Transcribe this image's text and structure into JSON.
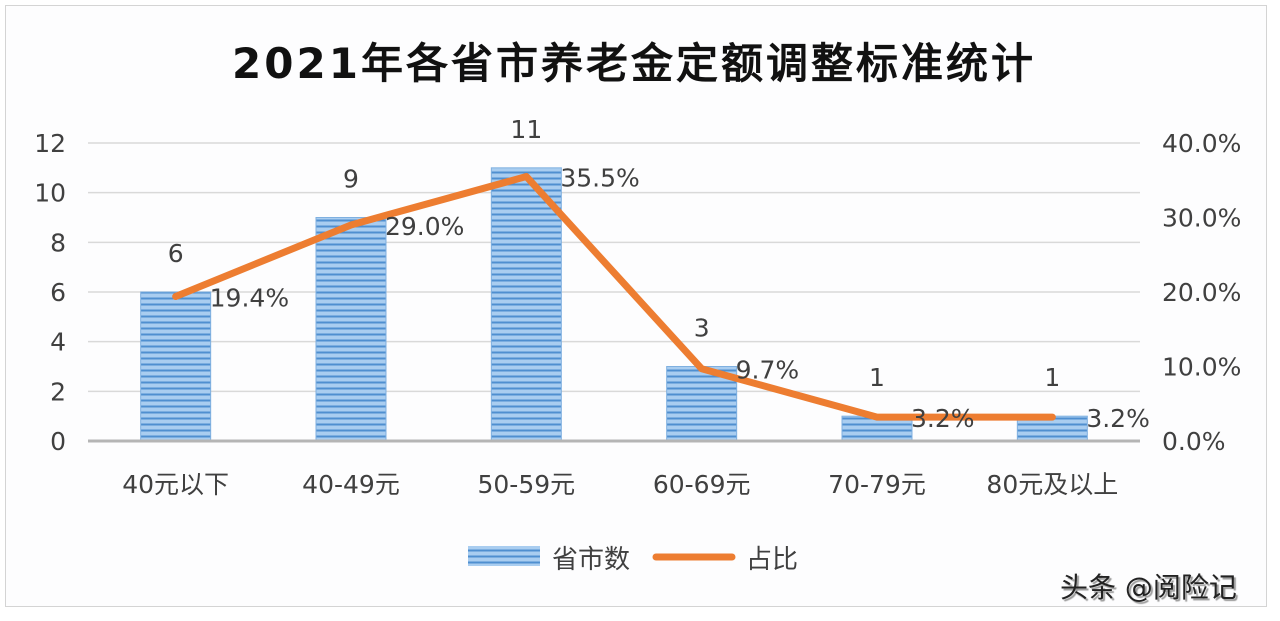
{
  "chart_data": {
    "type": "bar+line",
    "title": "2021年各省市养老金定额调整标准统计",
    "categories": [
      "40元以下",
      "40-49元",
      "50-59元",
      "60-69元",
      "70-79元",
      "80元及以上"
    ],
    "series": [
      {
        "name": "省市数",
        "type": "bar",
        "axis": "left",
        "values": [
          6,
          9,
          11,
          3,
          1,
          1
        ],
        "color": "#5b9bd5"
      },
      {
        "name": "占比",
        "type": "line",
        "axis": "right",
        "values": [
          19.4,
          29.0,
          35.5,
          9.7,
          3.2,
          3.2
        ],
        "labels": [
          "19.4%",
          "29.0%",
          "35.5%",
          "9.7%",
          "3.2%",
          "3.2%"
        ],
        "color": "#ed7d31"
      }
    ],
    "xlabel": "",
    "ylabel": "",
    "ylim": [
      0,
      12
    ],
    "y_ticks": [
      "0",
      "2",
      "4",
      "6",
      "8",
      "10",
      "12"
    ],
    "y2lim": [
      0,
      40
    ],
    "y2_ticks": [
      "0.0%",
      "10.0%",
      "20.0%",
      "30.0%",
      "40.0%"
    ],
    "grid": true,
    "legend_position": "bottom"
  },
  "legend": {
    "bar_label": "省市数",
    "line_label": "占比"
  },
  "watermark": "头条 @阅险记"
}
